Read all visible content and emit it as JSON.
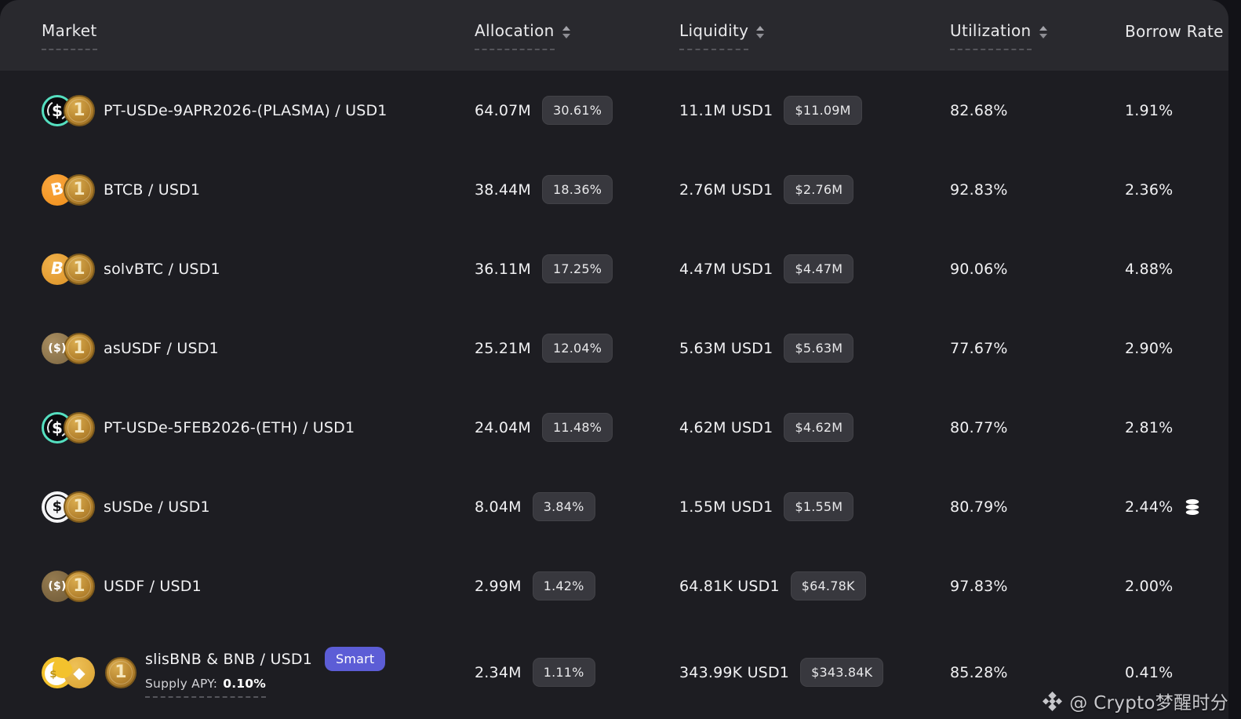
{
  "header": {
    "columns": [
      {
        "id": "market",
        "label": "Market",
        "sortable": false,
        "underlined": true
      },
      {
        "id": "allocation",
        "label": "Allocation",
        "sortable": true,
        "underlined": true
      },
      {
        "id": "liquidity",
        "label": "Liquidity",
        "sortable": true,
        "underlined": true
      },
      {
        "id": "utilization",
        "label": "Utilization",
        "sortable": true,
        "underlined": true
      },
      {
        "id": "borrow_rate",
        "label": "Borrow Rate",
        "sortable": false,
        "underlined": false
      }
    ]
  },
  "icons": {
    "pt-usde": {
      "glyph": "$"
    },
    "usd1": {
      "glyph": "1"
    },
    "btcb": {
      "glyph": "B"
    },
    "solvbtc": {
      "glyph": "B"
    },
    "asusdf": {
      "glyph": "($)"
    },
    "susde": {
      "glyph": "$"
    },
    "usdf": {
      "glyph": "($)"
    },
    "slisbnb": {
      "glyph": "$"
    },
    "bnb": {
      "glyph": "◆"
    }
  },
  "rows": [
    {
      "market": "PT-USDe-9APR2026-(PLASMA) / USD1",
      "icon_groups": [
        [
          "pt-usde",
          "usd1"
        ]
      ],
      "allocation": "64.07M",
      "allocation_share": "30.61%",
      "liquidity": "11.1M USD1",
      "liquidity_usd": "$11.09M",
      "utilization": "82.68%",
      "borrow_rate": "1.91%"
    },
    {
      "market": "BTCB / USD1",
      "icon_groups": [
        [
          "btcb",
          "usd1"
        ]
      ],
      "allocation": "38.44M",
      "allocation_share": "18.36%",
      "liquidity": "2.76M USD1",
      "liquidity_usd": "$2.76M",
      "utilization": "92.83%",
      "borrow_rate": "2.36%"
    },
    {
      "market": "solvBTC / USD1",
      "icon_groups": [
        [
          "solvbtc",
          "usd1"
        ]
      ],
      "allocation": "36.11M",
      "allocation_share": "17.25%",
      "liquidity": "4.47M USD1",
      "liquidity_usd": "$4.47M",
      "utilization": "90.06%",
      "borrow_rate": "4.88%"
    },
    {
      "market": "asUSDF / USD1",
      "icon_groups": [
        [
          "asusdf",
          "usd1"
        ]
      ],
      "allocation": "25.21M",
      "allocation_share": "12.04%",
      "liquidity": "5.63M USD1",
      "liquidity_usd": "$5.63M",
      "utilization": "77.67%",
      "borrow_rate": "2.90%"
    },
    {
      "market": "PT-USDe-5FEB2026-(ETH) / USD1",
      "icon_groups": [
        [
          "pt-usde",
          "usd1"
        ]
      ],
      "allocation": "24.04M",
      "allocation_share": "11.48%",
      "liquidity": "4.62M USD1",
      "liquidity_usd": "$4.62M",
      "utilization": "80.77%",
      "borrow_rate": "2.81%"
    },
    {
      "market": "sUSDe / USD1",
      "icon_groups": [
        [
          "susde",
          "usd1"
        ]
      ],
      "allocation": "8.04M",
      "allocation_share": "3.84%",
      "liquidity": "1.55M USD1",
      "liquidity_usd": "$1.55M",
      "utilization": "80.79%",
      "borrow_rate": "2.44%",
      "borrow_icon": "coin-stack"
    },
    {
      "market": "USDF / USD1",
      "icon_groups": [
        [
          "usdf",
          "usd1"
        ]
      ],
      "allocation": "2.99M",
      "allocation_share": "1.42%",
      "liquidity": "64.81K USD1",
      "liquidity_usd": "$64.78K",
      "utilization": "97.83%",
      "borrow_rate": "2.00%"
    },
    {
      "market": "slisBNB & BNB / USD1",
      "badge": "Smart",
      "supply_apy_label": "Supply APY:",
      "supply_apy_value": "0.10%",
      "tall": true,
      "icon_groups": [
        [
          "slisbnb",
          "bnb"
        ],
        [
          "usd1"
        ]
      ],
      "allocation": "2.34M",
      "allocation_share": "1.11%",
      "liquidity": "343.99K USD1",
      "liquidity_usd": "$343.84K",
      "utilization": "85.28%",
      "borrow_rate": "0.41%"
    }
  ],
  "watermark": {
    "text": "@ Crypto梦醒时分"
  }
}
